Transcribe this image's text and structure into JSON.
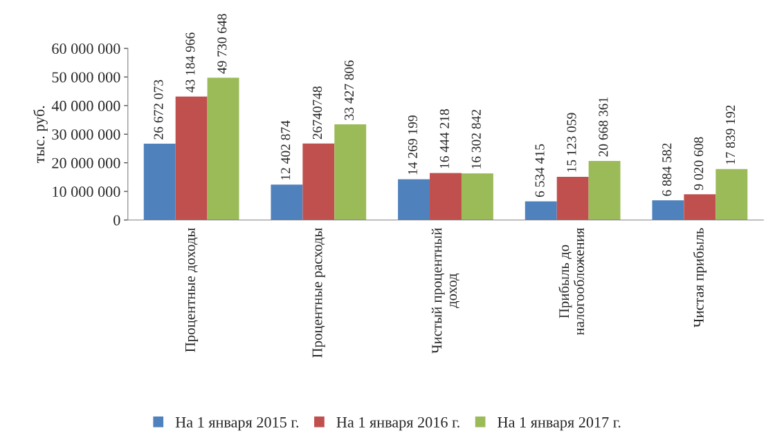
{
  "chart_data": {
    "type": "bar",
    "ylabel": "тыс. руб.",
    "categories": [
      "Процентные доходы",
      "Процентные расходы",
      "Чистый процентный\nдоход",
      "Прибыль до\nналогообложения",
      "Чистая прибыль"
    ],
    "series": [
      {
        "name": "На 1 января 2015 г.",
        "color": "#4f81bd",
        "values": [
          26672073,
          12402874,
          14269199,
          6534415,
          6884582
        ],
        "value_labels": [
          "26 672 073",
          "12 402 874",
          "14 269 199",
          "6 534 415",
          "6 884 582"
        ]
      },
      {
        "name": "На 1 января 2016 г.",
        "color": "#c0504d",
        "values": [
          43184966,
          26740748,
          16444218,
          15123059,
          9020608
        ],
        "value_labels": [
          "43 184 966",
          "26740748",
          "16 444 218",
          "15 123 059",
          "9 020 608"
        ]
      },
      {
        "name": "На 1 января 2017 г.",
        "color": "#9bbb59",
        "values": [
          49730648,
          33427806,
          16302842,
          20668361,
          17839192
        ],
        "value_labels": [
          "49 730 648",
          "33 427 806",
          "16 302 842",
          "20 668 361",
          "17 839 192"
        ]
      }
    ],
    "ylim": [
      0,
      60000000
    ],
    "yticks": [
      {
        "value": 0,
        "label": "0"
      },
      {
        "value": 10000000,
        "label": "10 000 000"
      },
      {
        "value": 20000000,
        "label": "20 000 000"
      },
      {
        "value": 30000000,
        "label": "30 000 000"
      },
      {
        "value": 40000000,
        "label": "40 000 000"
      },
      {
        "value": 50000000,
        "label": "50 000 000"
      },
      {
        "value": 60000000,
        "label": "60 000 000"
      }
    ],
    "grid": false,
    "legend": "bottom"
  }
}
